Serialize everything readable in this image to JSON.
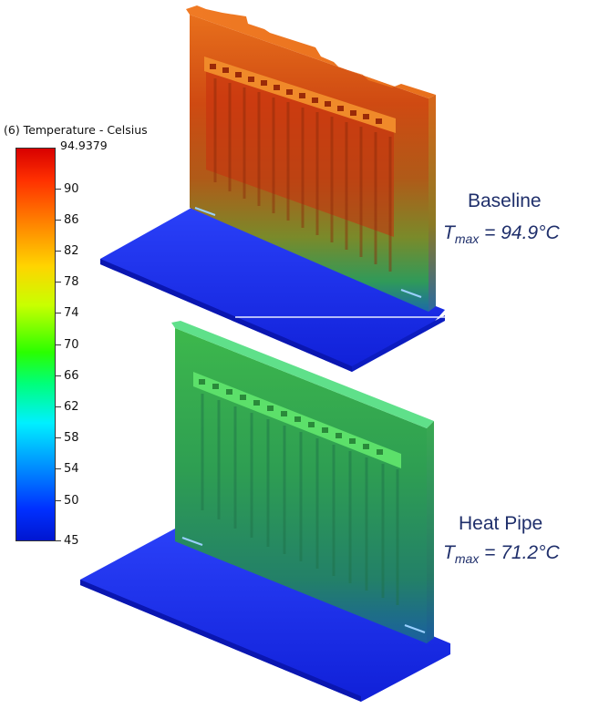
{
  "legend": {
    "title": "(6) Temperature - Celsius",
    "max_label": "94.9379",
    "ticks": [
      "90",
      "86",
      "82",
      "78",
      "74",
      "70",
      "66",
      "62",
      "58",
      "54",
      "50",
      "45"
    ]
  },
  "cases": [
    {
      "name": "Baseline",
      "tmax_symbol": "T",
      "tmax_sub": "max",
      "tmax_value": " = 94.9°C"
    },
    {
      "name": "Heat Pipe",
      "tmax_symbol": "T",
      "tmax_sub": "max",
      "tmax_value": " = 71.2°C"
    }
  ],
  "colors": {
    "base_plate": "#1a2cf0",
    "baseline_top": "#e2661b",
    "baseline_mid": "#c63a0e",
    "baseline_bottom": "#4a9a3a",
    "heatpipe_top": "#3fbf4f",
    "heatpipe_mid": "#2d9a54",
    "heatpipe_bottom": "#1e7a7a"
  }
}
